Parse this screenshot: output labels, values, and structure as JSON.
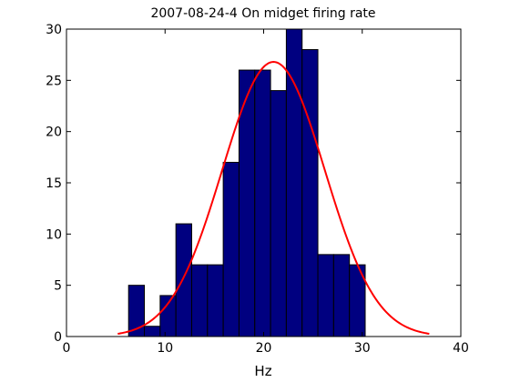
{
  "chart_data": {
    "type": "bar",
    "title": "2007-08-24-4 On midget firing rate",
    "xlabel": "Hz",
    "ylabel": "",
    "xlim": [
      0,
      40
    ],
    "ylim": [
      0,
      30
    ],
    "xticks": [
      "0",
      "10",
      "20",
      "30",
      "40"
    ],
    "yticks": [
      "0",
      "5",
      "10",
      "15",
      "20",
      "25",
      "30"
    ],
    "grid": false,
    "histogram": {
      "bin_width": 1.6,
      "bin_starts": [
        6.3,
        7.9,
        9.5,
        11.1,
        12.7,
        14.3,
        15.9,
        17.5,
        19.1,
        20.7,
        22.3,
        23.9,
        25.5,
        27.1,
        28.7,
        30.3
      ],
      "counts": [
        5,
        1,
        4,
        11,
        7,
        7,
        17,
        26,
        26,
        24,
        30,
        28,
        8,
        8,
        7,
        0
      ]
    },
    "fit": {
      "type": "gaussian",
      "x_range": [
        5.2,
        36.8
      ],
      "peak": 26.8,
      "mean": 21.0,
      "sigma": 5.2
    },
    "colors": {
      "bar_fill": "#000080",
      "bar_edge": "#000000",
      "fit_line": "#ff0000"
    }
  }
}
